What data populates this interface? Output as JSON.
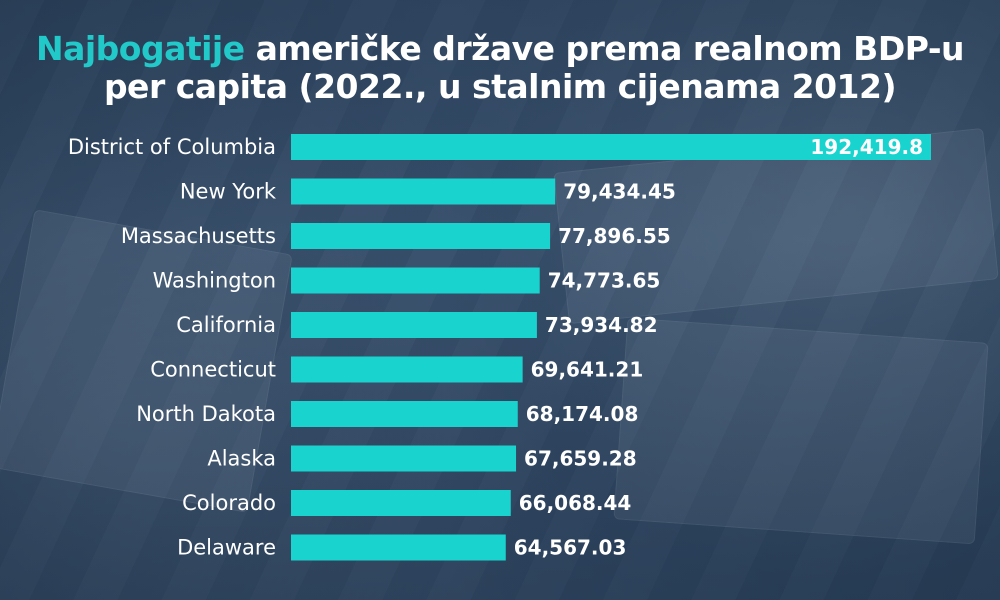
{
  "title": {
    "highlight": "Najbogatije",
    "rest_line1": " američke države prema realnom BDP-u",
    "line2": "per capita (2022., u stalnim cijenama 2012)"
  },
  "colors": {
    "bar": "#19d3cf",
    "highlight": "#22c9c9",
    "text": "#ffffff"
  },
  "chart_data": {
    "type": "bar",
    "orientation": "horizontal",
    "categories": [
      "District of Columbia",
      "New York",
      "Massachusetts",
      "Washington",
      "California",
      "Connecticut",
      "North Dakota",
      "Alaska",
      "Colorado",
      "Delaware"
    ],
    "values": [
      192419.8,
      79434.45,
      77896.55,
      74773.65,
      73934.82,
      69641.21,
      68174.08,
      67659.28,
      66068.44,
      64567.03
    ],
    "value_labels": [
      "192,419.8",
      "79,434.45",
      "77,896.55",
      "74,773.65",
      "73,934.82",
      "69,641.21",
      "68,174.08",
      "67,659.28",
      "66,068.44",
      "64,567.03"
    ],
    "title": "Najbogatije američke države prema realnom BDP-u per capita (2022., u stalnim cijenama 2012)",
    "xlim": [
      0,
      192419.8
    ],
    "grid": false,
    "legend": "none"
  }
}
